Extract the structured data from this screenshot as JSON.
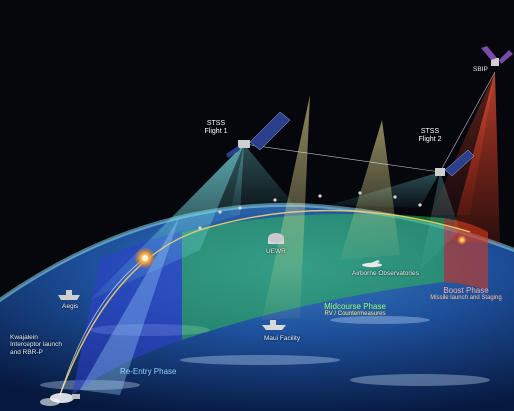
{
  "labels": {
    "sbirs": "SBIP",
    "stss_1_title": "STSS",
    "stss_1_sub": "Flight 1",
    "stss_2_title": "STSS",
    "stss_2_sub": "Flight 2",
    "uewr": "UEWR",
    "airborne": "Airborne Observatories",
    "aegis": "Aegis",
    "maui": "Maui Facility",
    "kwajalein_1": "Kwajalein",
    "kwajalein_2": "Interceptor launch",
    "kwajalein_3": "and RBR-P",
    "reentry": "Re-Entry Phase",
    "midcourse": "Midcourse Phase",
    "midcourse_sub": "RV / Countermeasures",
    "boost": "Boost Phase",
    "boost_sub": "Missile launch and Staging"
  },
  "colors": {
    "space": "#05070c",
    "earth_ocean": "#1d4f9a",
    "reentry_zone": "#2f3fcf",
    "midcourse_zone": "#2fbf4a",
    "boost_zone": "#d23a1e",
    "sensor_beam": "#5ecbd0",
    "trajectory": "#f0d36a"
  },
  "icons": [
    "satellite-icon",
    "ship-icon",
    "radar-dome-icon",
    "aircraft-icon",
    "rocket-launch-icon",
    "explosion-icon"
  ]
}
